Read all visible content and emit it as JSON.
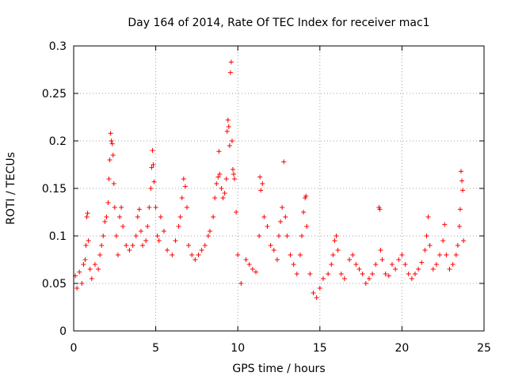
{
  "chart_data": {
    "type": "scatter",
    "title": "Day 164 of 2014, Rate Of TEC Index for receiver mac1",
    "xlabel": "GPS time / hours",
    "ylabel": "ROTI / TECUs",
    "xlim": [
      0,
      25
    ],
    "ylim": [
      0,
      0.3
    ],
    "x_ticks": [
      0,
      5,
      10,
      15,
      20,
      25
    ],
    "x_tick_labels": [
      "0",
      "5",
      "10",
      "15",
      "20",
      "25"
    ],
    "y_ticks": [
      0,
      0.05,
      0.1,
      0.15,
      0.2,
      0.25,
      0.3
    ],
    "y_tick_labels": [
      "0",
      "0.05",
      "0.1",
      "0.15",
      "0.2",
      "0.25",
      "0.3"
    ],
    "grid": true,
    "marker": "+",
    "color": "#ff0000",
    "series": [
      {
        "name": "ROTI",
        "points": [
          [
            0.1,
            0.058
          ],
          [
            0.2,
            0.045
          ],
          [
            0.35,
            0.062
          ],
          [
            0.5,
            0.05
          ],
          [
            0.6,
            0.07
          ],
          [
            0.7,
            0.075
          ],
          [
            0.75,
            0.09
          ],
          [
            0.8,
            0.12
          ],
          [
            0.85,
            0.124
          ],
          [
            0.9,
            0.095
          ],
          [
            1.0,
            0.065
          ],
          [
            1.1,
            0.055
          ],
          [
            1.3,
            0.07
          ],
          [
            1.5,
            0.065
          ],
          [
            1.6,
            0.08
          ],
          [
            1.7,
            0.09
          ],
          [
            1.8,
            0.1
          ],
          [
            1.9,
            0.115
          ],
          [
            2.0,
            0.12
          ],
          [
            2.1,
            0.135
          ],
          [
            2.15,
            0.16
          ],
          [
            2.2,
            0.18
          ],
          [
            2.25,
            0.208
          ],
          [
            2.3,
            0.2
          ],
          [
            2.35,
            0.197
          ],
          [
            2.4,
            0.185
          ],
          [
            2.45,
            0.155
          ],
          [
            2.5,
            0.13
          ],
          [
            2.6,
            0.1
          ],
          [
            2.7,
            0.08
          ],
          [
            2.8,
            0.12
          ],
          [
            2.9,
            0.13
          ],
          [
            3.0,
            0.11
          ],
          [
            3.2,
            0.09
          ],
          [
            3.4,
            0.085
          ],
          [
            3.6,
            0.09
          ],
          [
            3.8,
            0.1
          ],
          [
            3.9,
            0.12
          ],
          [
            4.0,
            0.128
          ],
          [
            4.1,
            0.105
          ],
          [
            4.2,
            0.09
          ],
          [
            4.4,
            0.095
          ],
          [
            4.5,
            0.11
          ],
          [
            4.6,
            0.13
          ],
          [
            4.7,
            0.15
          ],
          [
            4.75,
            0.172
          ],
          [
            4.8,
            0.19
          ],
          [
            4.85,
            0.175
          ],
          [
            4.9,
            0.157
          ],
          [
            5.0,
            0.13
          ],
          [
            5.1,
            0.1
          ],
          [
            5.2,
            0.095
          ],
          [
            5.3,
            0.12
          ],
          [
            5.5,
            0.105
          ],
          [
            5.7,
            0.085
          ],
          [
            6.0,
            0.08
          ],
          [
            6.2,
            0.095
          ],
          [
            6.4,
            0.11
          ],
          [
            6.5,
            0.12
          ],
          [
            6.6,
            0.14
          ],
          [
            6.7,
            0.16
          ],
          [
            6.8,
            0.152
          ],
          [
            6.9,
            0.13
          ],
          [
            7.0,
            0.09
          ],
          [
            7.2,
            0.08
          ],
          [
            7.4,
            0.075
          ],
          [
            7.6,
            0.08
          ],
          [
            7.8,
            0.085
          ],
          [
            8.0,
            0.09
          ],
          [
            8.2,
            0.1
          ],
          [
            8.3,
            0.105
          ],
          [
            8.5,
            0.12
          ],
          [
            8.6,
            0.14
          ],
          [
            8.7,
            0.155
          ],
          [
            8.8,
            0.162
          ],
          [
            8.85,
            0.189
          ],
          [
            8.9,
            0.165
          ],
          [
            9.0,
            0.15
          ],
          [
            9.1,
            0.14
          ],
          [
            9.2,
            0.145
          ],
          [
            9.3,
            0.16
          ],
          [
            9.35,
            0.21
          ],
          [
            9.4,
            0.222
          ],
          [
            9.45,
            0.215
          ],
          [
            9.5,
            0.195
          ],
          [
            9.55,
            0.272
          ],
          [
            9.6,
            0.283
          ],
          [
            9.65,
            0.2
          ],
          [
            9.7,
            0.17
          ],
          [
            9.75,
            0.165
          ],
          [
            9.8,
            0.16
          ],
          [
            9.9,
            0.125
          ],
          [
            10.0,
            0.08
          ],
          [
            10.2,
            0.05
          ],
          [
            10.5,
            0.075
          ],
          [
            10.7,
            0.07
          ],
          [
            10.9,
            0.065
          ],
          [
            11.1,
            0.062
          ],
          [
            11.3,
            0.1
          ],
          [
            11.35,
            0.162
          ],
          [
            11.4,
            0.148
          ],
          [
            11.5,
            0.155
          ],
          [
            11.6,
            0.12
          ],
          [
            11.8,
            0.11
          ],
          [
            12.0,
            0.09
          ],
          [
            12.2,
            0.085
          ],
          [
            12.4,
            0.075
          ],
          [
            12.5,
            0.1
          ],
          [
            12.6,
            0.115
          ],
          [
            12.7,
            0.13
          ],
          [
            12.8,
            0.178
          ],
          [
            12.9,
            0.12
          ],
          [
            13.0,
            0.1
          ],
          [
            13.2,
            0.08
          ],
          [
            13.4,
            0.07
          ],
          [
            13.6,
            0.06
          ],
          [
            13.8,
            0.08
          ],
          [
            13.9,
            0.1
          ],
          [
            14.0,
            0.125
          ],
          [
            14.1,
            0.14
          ],
          [
            14.15,
            0.142
          ],
          [
            14.2,
            0.11
          ],
          [
            14.4,
            0.06
          ],
          [
            14.6,
            0.04
          ],
          [
            14.8,
            0.035
          ],
          [
            15.0,
            0.045
          ],
          [
            15.2,
            0.055
          ],
          [
            15.5,
            0.06
          ],
          [
            15.7,
            0.07
          ],
          [
            15.8,
            0.08
          ],
          [
            15.9,
            0.095
          ],
          [
            16.0,
            0.1
          ],
          [
            16.1,
            0.085
          ],
          [
            16.3,
            0.06
          ],
          [
            16.5,
            0.055
          ],
          [
            16.8,
            0.075
          ],
          [
            17.0,
            0.08
          ],
          [
            17.2,
            0.07
          ],
          [
            17.4,
            0.065
          ],
          [
            17.6,
            0.06
          ],
          [
            17.8,
            0.05
          ],
          [
            18.0,
            0.055
          ],
          [
            18.2,
            0.06
          ],
          [
            18.4,
            0.07
          ],
          [
            18.6,
            0.13
          ],
          [
            18.65,
            0.128
          ],
          [
            18.7,
            0.085
          ],
          [
            18.8,
            0.075
          ],
          [
            19.0,
            0.06
          ],
          [
            19.2,
            0.058
          ],
          [
            19.4,
            0.07
          ],
          [
            19.6,
            0.065
          ],
          [
            19.8,
            0.075
          ],
          [
            20.0,
            0.08
          ],
          [
            20.2,
            0.07
          ],
          [
            20.4,
            0.06
          ],
          [
            20.6,
            0.055
          ],
          [
            20.8,
            0.06
          ],
          [
            21.0,
            0.065
          ],
          [
            21.2,
            0.072
          ],
          [
            21.4,
            0.085
          ],
          [
            21.5,
            0.1
          ],
          [
            21.6,
            0.12
          ],
          [
            21.7,
            0.09
          ],
          [
            21.9,
            0.065
          ],
          [
            22.1,
            0.07
          ],
          [
            22.3,
            0.08
          ],
          [
            22.5,
            0.095
          ],
          [
            22.6,
            0.112
          ],
          [
            22.7,
            0.08
          ],
          [
            22.9,
            0.065
          ],
          [
            23.1,
            0.07
          ],
          [
            23.3,
            0.08
          ],
          [
            23.4,
            0.09
          ],
          [
            23.5,
            0.11
          ],
          [
            23.55,
            0.128
          ],
          [
            23.6,
            0.168
          ],
          [
            23.65,
            0.158
          ],
          [
            23.7,
            0.148
          ],
          [
            23.75,
            0.095
          ]
        ]
      }
    ]
  }
}
